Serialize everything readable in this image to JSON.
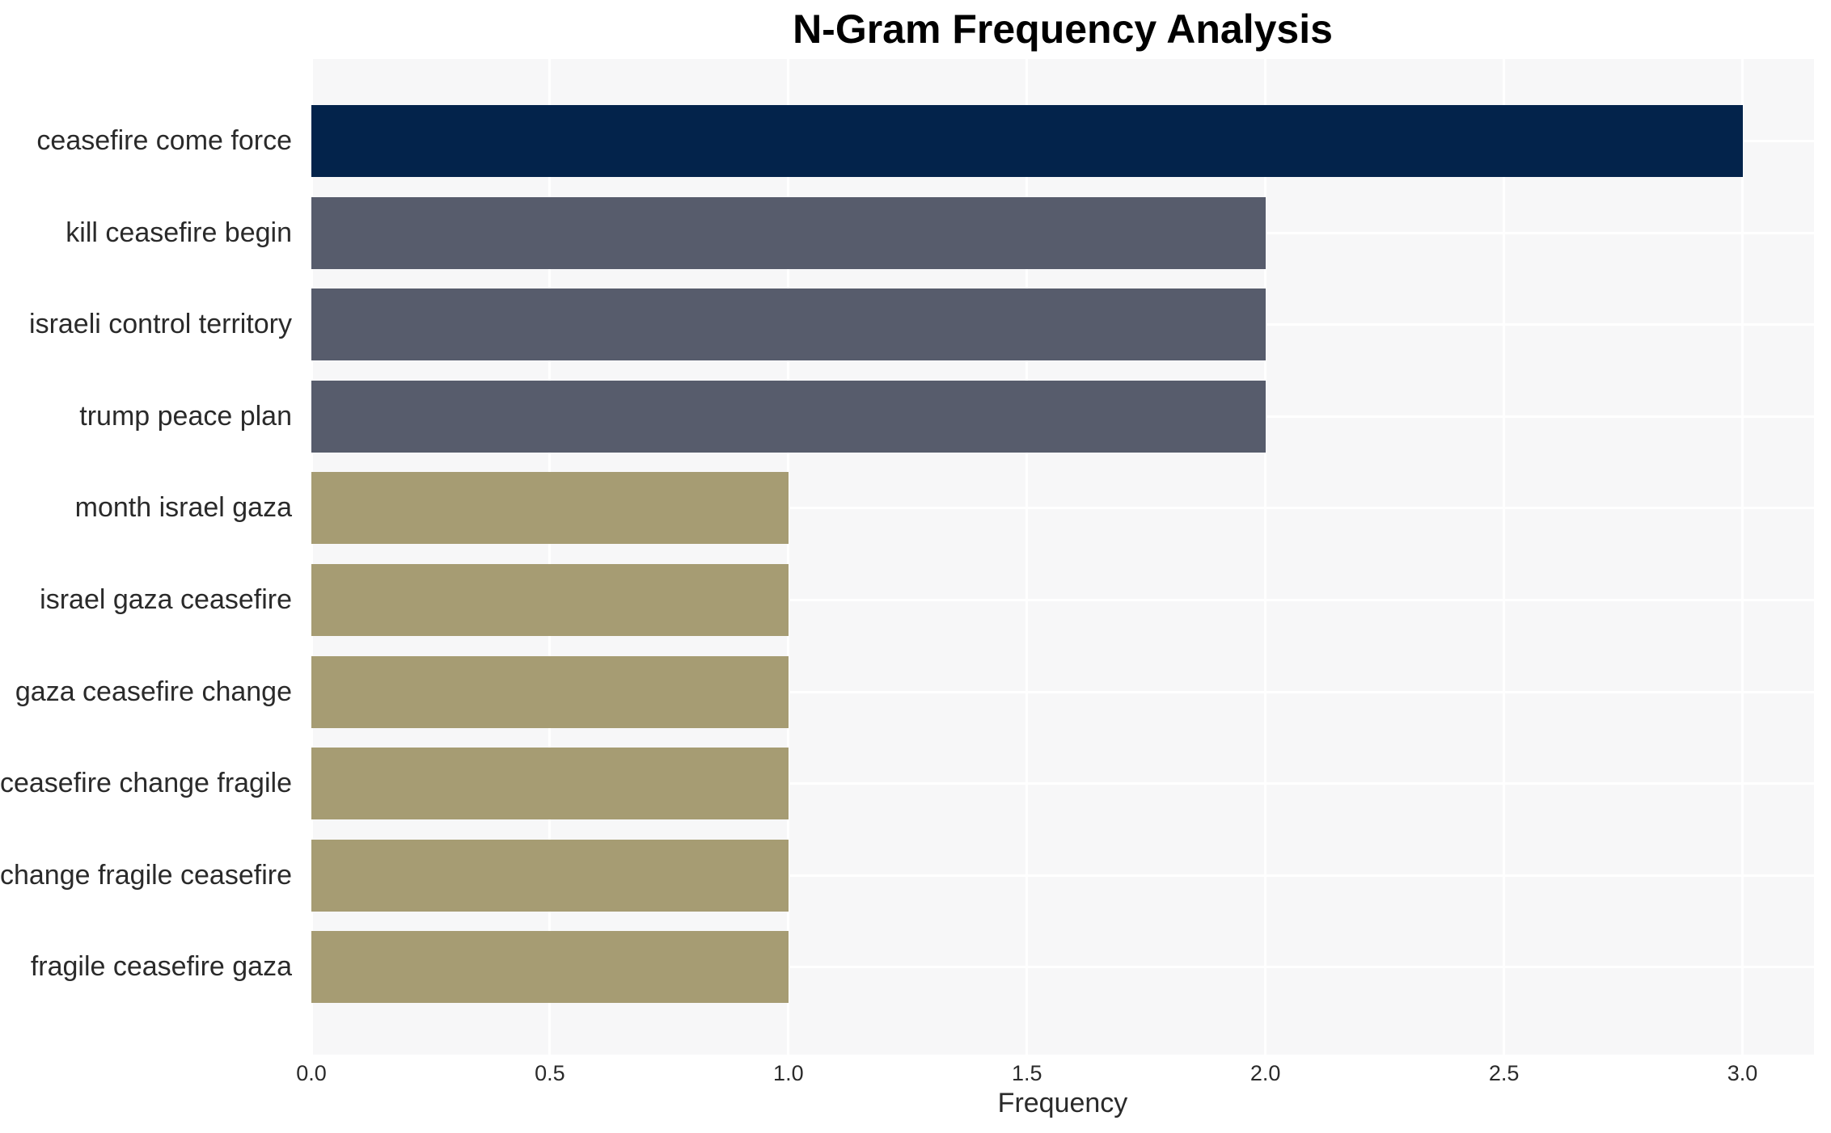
{
  "page": {
    "background": "#ffffff"
  },
  "chart_data": {
    "type": "bar",
    "orientation": "horizontal",
    "title": "N-Gram Frequency Analysis",
    "xlabel": "Frequency",
    "ylabel": "",
    "categories": [
      "ceasefire come force",
      "kill ceasefire begin",
      "israeli control territory",
      "trump peace plan",
      "month israel gaza",
      "israel gaza ceasefire",
      "gaza ceasefire change",
      "ceasefire change fragile",
      "change fragile ceasefire",
      "fragile ceasefire gaza"
    ],
    "values": [
      3,
      2,
      2,
      2,
      1,
      1,
      1,
      1,
      1,
      1
    ],
    "bar_colors": [
      "#03234b",
      "#575c6c",
      "#575c6c",
      "#575c6c",
      "#a69c73",
      "#a69c73",
      "#a69c73",
      "#a69c73",
      "#a69c73",
      "#a69c73"
    ],
    "xlim": [
      0,
      3.15
    ],
    "xticks": [
      0,
      0.5,
      1,
      1.5,
      2,
      2.5,
      3
    ],
    "xtick_labels": [
      "0.0",
      "0.5",
      "1.0",
      "1.5",
      "2.0",
      "2.5",
      "3.0"
    ],
    "grid": true,
    "legend": "none",
    "plot_background": "#f7f7f8",
    "gridline_color": "#ffffff"
  }
}
